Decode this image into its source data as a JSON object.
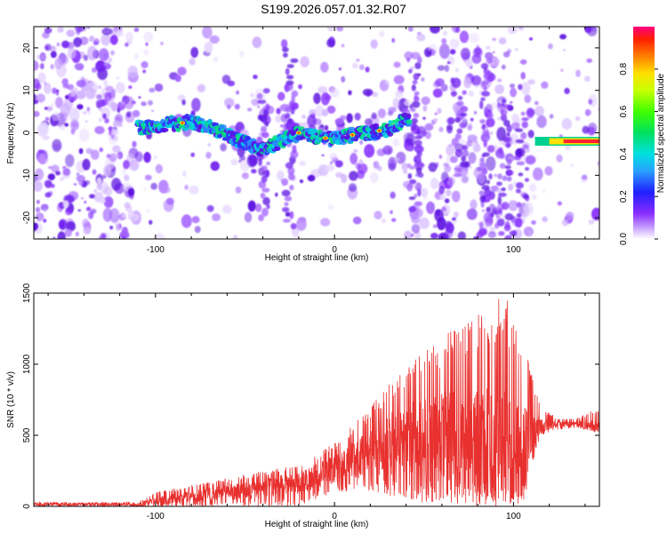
{
  "figure_title": "S199.2026.057.01.32.R07",
  "colors": {
    "snr_line": "#e8302e",
    "spectrogram_low": "#7b2cff",
    "spectrogram_high": "#ff2030"
  },
  "chart_data": [
    {
      "type": "heatmap",
      "title": "S199.2026.057.01.32.R07",
      "xlabel": "Height of straight line (km)",
      "ylabel": "Frequency (Hz)",
      "xlim": [
        -168,
        148
      ],
      "ylim": [
        -25,
        25
      ],
      "x_ticks": [
        -100,
        0,
        100
      ],
      "y_ticks": [
        -20,
        -10,
        0,
        10,
        20
      ],
      "colorbar": {
        "label": "Normalized spectral amplitude",
        "range": [
          0,
          1
        ],
        "ticks": [
          "0.0",
          "0.2",
          "0.4",
          "0.6",
          "0.8"
        ],
        "tick_values": [
          0.0,
          0.2,
          0.4,
          0.6,
          0.8
        ]
      },
      "ridge": [
        {
          "x": -110,
          "f": 1.0
        },
        {
          "x": -95,
          "f": 2.0
        },
        {
          "x": -80,
          "f": 2.5
        },
        {
          "x": -65,
          "f": 0.5
        },
        {
          "x": -50,
          "f": -2.5
        },
        {
          "x": -40,
          "f": -4.0
        },
        {
          "x": -30,
          "f": -2.0
        },
        {
          "x": -20,
          "f": 0.0
        },
        {
          "x": -10,
          "f": -1.0
        },
        {
          "x": 0,
          "f": -1.5
        },
        {
          "x": 10,
          "f": -0.5
        },
        {
          "x": 20,
          "f": 0.0
        },
        {
          "x": 30,
          "f": 1.0
        },
        {
          "x": 40,
          "f": 3.0
        },
        {
          "x": 115,
          "f": -2.0
        },
        {
          "x": 130,
          "f": -2.0
        },
        {
          "x": 148,
          "f": -2.0
        }
      ]
    },
    {
      "type": "line",
      "xlabel": "Height of straight line (km)",
      "ylabel": "SNR (10 * v/v)",
      "xlim": [
        -168,
        148
      ],
      "ylim": [
        0,
        1500
      ],
      "x_ticks": [
        -100,
        0,
        100
      ],
      "y_ticks": [
        0,
        500,
        1000,
        1500
      ],
      "series": [
        {
          "name": "SNR",
          "envelope": {
            "x": [
              -168,
              -120,
              -110,
              -100,
              -80,
              -60,
              -40,
              -20,
              0,
              20,
              40,
              60,
              80,
              95,
              105,
              115,
              125,
              135,
              148
            ],
            "lower": [
              0,
              0,
              0,
              0,
              0,
              0,
              0,
              0,
              100,
              100,
              50,
              0,
              0,
              0,
              0,
              500,
              540,
              550,
              520
            ],
            "upper": [
              30,
              30,
              30,
              100,
              150,
              200,
              250,
              300,
              450,
              700,
              1000,
              1200,
              1350,
              1500,
              1200,
              700,
              620,
              620,
              700
            ],
            "center": [
              15,
              15,
              15,
              40,
              70,
              100,
              120,
              170,
              260,
              380,
              480,
              480,
              460,
              430,
              380,
              570,
              580,
              580,
              560
            ]
          }
        }
      ]
    }
  ]
}
